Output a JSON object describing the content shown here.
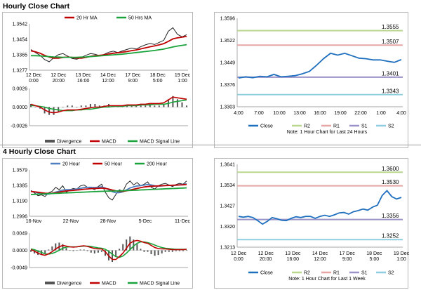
{
  "sections": [
    {
      "title": "Hourly Close Chart"
    },
    {
      "title": "4 Hourly Close Chart"
    }
  ],
  "colors": {
    "ma_fast": "#c00000",
    "ma_mid": "#c00000",
    "ma_slow": "#1aa33a",
    "ma_20h": "#4e7fbf",
    "price": "#222222",
    "macd": "#c00000",
    "signal": "#1aa33a",
    "divergence": "#555555",
    "close": "#1f6fbf",
    "r2": "#b9d78f",
    "r1": "#e6a5a5",
    "s1": "#9a93c8",
    "s2": "#8fcde0"
  },
  "chart_data": [
    {
      "id": "hourly_price",
      "type": "line",
      "title": "Hourly Close Chart",
      "legend": [
        "20 Hr MA",
        "50 Hrs MA"
      ],
      "y_ticks": [
        "1.3542",
        "1.3454",
        "1.3365",
        "1.3277"
      ],
      "ylim": [
        1.3277,
        1.3542
      ],
      "x_ticks": [
        [
          "12 Dec",
          "0:00"
        ],
        [
          "12 Dec",
          "20:00"
        ],
        [
          "13 Dec",
          "16:00"
        ],
        [
          "14 Dec",
          "12:00"
        ],
        [
          "17 Dec",
          "9:00"
        ],
        [
          "18 Dec",
          "5:00"
        ],
        [
          "19 Dec",
          "1:00"
        ]
      ],
      "series": [
        {
          "name": "Price",
          "values": [
            1.3395,
            1.3378,
            1.3362,
            1.3338,
            1.3325,
            1.3348,
            1.3366,
            1.3372,
            1.3358,
            1.3344,
            1.334,
            1.335,
            1.3362,
            1.3372,
            1.3368,
            1.336,
            1.3368,
            1.338,
            1.3386,
            1.3378,
            1.3388,
            1.3396,
            1.3404,
            1.3398,
            1.3412,
            1.3422,
            1.343,
            1.3424,
            1.3436,
            1.3448,
            1.35,
            1.352,
            1.3482,
            1.3468,
            1.348
          ]
        },
        {
          "name": "20 Hr MA",
          "values": [
            1.3388,
            1.3382,
            1.3374,
            1.3362,
            1.3352,
            1.3346,
            1.3346,
            1.335,
            1.3352,
            1.335,
            1.3347,
            1.3346,
            1.335,
            1.3356,
            1.336,
            1.3362,
            1.3365,
            1.337,
            1.3374,
            1.3377,
            1.338,
            1.3384,
            1.3389,
            1.3393,
            1.3399,
            1.3405,
            1.3411,
            1.3416,
            1.3422,
            1.3429,
            1.3442,
            1.3456,
            1.3462,
            1.3466,
            1.347
          ]
        },
        {
          "name": "50 Hrs MA",
          "values": [
            1.336,
            1.336,
            1.3359,
            1.3357,
            1.3355,
            1.3353,
            1.3352,
            1.3351,
            1.3351,
            1.3351,
            1.3351,
            1.3352,
            1.3353,
            1.3355,
            1.3357,
            1.3359,
            1.3361,
            1.3363,
            1.3365,
            1.3367,
            1.3369,
            1.3372,
            1.3375,
            1.3378,
            1.3381,
            1.3384,
            1.3387,
            1.339,
            1.3394,
            1.3398,
            1.3404,
            1.341,
            1.3415,
            1.3419,
            1.3423
          ]
        }
      ]
    },
    {
      "id": "hourly_macd",
      "type": "line",
      "legend": [
        "Divergence",
        "MACD",
        "MACD Signal Line"
      ],
      "y_ticks": [
        "0.0026",
        "0.0000",
        "-0.0026"
      ],
      "ylim": [
        -0.0026,
        0.0026
      ],
      "series": [
        {
          "name": "MACD",
          "values": [
            0.0004,
            0.0002,
            0.0,
            -0.0004,
            -0.0007,
            -0.0008,
            -0.0007,
            -0.0005,
            -0.0004,
            -0.0004,
            -0.0004,
            -0.0003,
            -0.0002,
            -0.0001,
            0.0,
            0.0,
            0.0001,
            0.0002,
            0.0002,
            0.0002,
            0.0002,
            0.0003,
            0.0003,
            0.0003,
            0.0004,
            0.0004,
            0.0005,
            0.0005,
            0.0005,
            0.0006,
            0.001,
            0.0014,
            0.0013,
            0.0012,
            0.0011
          ]
        },
        {
          "name": "MACD Signal Line",
          "values": [
            0.0002,
            0.0002,
            0.0001,
            0.0,
            -0.0002,
            -0.0003,
            -0.0004,
            -0.0005,
            -0.0005,
            -0.0005,
            -0.0004,
            -0.0004,
            -0.0003,
            -0.0003,
            -0.0002,
            -0.0001,
            0.0,
            0.0,
            0.0001,
            0.0001,
            0.0001,
            0.0002,
            0.0002,
            0.0002,
            0.0003,
            0.0003,
            0.0003,
            0.0004,
            0.0004,
            0.0004,
            0.0005,
            0.0007,
            0.0008,
            0.0009,
            0.001
          ]
        }
      ]
    },
    {
      "id": "last24",
      "type": "line",
      "y_ticks": [
        "1.3596",
        "1.3522",
        "1.3449",
        "1.3376",
        "1.3303"
      ],
      "ylim": [
        1.3303,
        1.3596
      ],
      "x_ticks": [
        "4:00",
        "7:00",
        "10:00",
        "13:00",
        "16:00",
        "19:00",
        "22:00",
        "1:00",
        "4:00"
      ],
      "levels": [
        {
          "name": "R2",
          "value": 1.3555,
          "label": "1.3555"
        },
        {
          "name": "R1",
          "value": 1.3507,
          "label": "1.3507"
        },
        {
          "name": "S1",
          "value": 1.3401,
          "label": "1.3401"
        },
        {
          "name": "S2",
          "value": 1.3343,
          "label": "1.3343"
        }
      ],
      "series": [
        {
          "name": "Close",
          "values": [
            1.3398,
            1.3402,
            1.3399,
            1.3404,
            1.3402,
            1.341,
            1.3402,
            1.3404,
            1.3406,
            1.3412,
            1.342,
            1.344,
            1.3462,
            1.348,
            1.3474,
            1.348,
            1.3472,
            1.3464,
            1.3462,
            1.3458,
            1.3458,
            1.3454,
            1.345,
            1.3459
          ]
        }
      ],
      "legend": [
        "Close",
        "R2",
        "R1",
        "S1",
        "S2"
      ],
      "note": "Note: 1 Hour Chart for Last 24 Hours"
    },
    {
      "id": "four_hourly_price",
      "type": "line",
      "title": "4 Hourly Close Chart",
      "legend": [
        "20 Hour",
        "50 Hour",
        "200 Hour"
      ],
      "y_ticks": [
        "1.3579",
        "1.3385",
        "1.3190",
        "1.2996"
      ],
      "ylim": [
        1.2996,
        1.3579
      ],
      "x_ticks": [
        "16-Nov",
        "22-Nov",
        "28-Nov",
        "5-Dec",
        "11-Dec"
      ],
      "series": [
        {
          "name": "Price",
          "values": [
            1.3322,
            1.329,
            1.3255,
            1.3265,
            1.3245,
            1.329,
            1.331,
            1.336,
            1.333,
            1.338,
            1.33,
            1.333,
            1.3346,
            1.334,
            1.3378,
            1.339,
            1.336,
            1.335,
            1.333,
            1.337,
            1.34,
            1.33,
            1.323,
            1.32,
            1.327,
            1.333,
            1.331,
            1.34,
            1.344,
            1.339,
            1.342,
            1.338,
            1.34,
            1.343,
            1.336,
            1.334,
            1.338,
            1.34,
            1.341,
            1.339,
            1.337,
            1.3395,
            1.341,
            1.34,
            1.344
          ]
        },
        {
          "name": "20 Hour",
          "values": [
            1.3312,
            1.3302,
            1.329,
            1.328,
            1.3272,
            1.3276,
            1.3284,
            1.33,
            1.3312,
            1.3326,
            1.333,
            1.3332,
            1.3334,
            1.334,
            1.3348,
            1.3356,
            1.336,
            1.336,
            1.3358,
            1.336,
            1.3365,
            1.3352,
            1.333,
            1.3304,
            1.3292,
            1.3294,
            1.3304,
            1.3328,
            1.3352,
            1.3366,
            1.3378,
            1.3382,
            1.3388,
            1.3396,
            1.339,
            1.338,
            1.3376,
            1.3378,
            1.3384,
            1.3386,
            1.3384,
            1.3386,
            1.3392,
            1.3396,
            1.3404
          ]
        },
        {
          "name": "50 Hour",
          "values": [
            1.3308,
            1.3304,
            1.3298,
            1.3292,
            1.3286,
            1.3284,
            1.3286,
            1.3292,
            1.33,
            1.3308,
            1.3314,
            1.3318,
            1.3322,
            1.3326,
            1.333,
            1.3336,
            1.334,
            1.3344,
            1.3346,
            1.3348,
            1.335,
            1.3346,
            1.3338,
            1.3326,
            1.3316,
            1.331,
            1.331,
            1.3316,
            1.3326,
            1.3336,
            1.3346,
            1.3356,
            1.3364,
            1.337,
            1.3374,
            1.3376,
            1.3378,
            1.338,
            1.3382,
            1.3384,
            1.3386,
            1.3388,
            1.339,
            1.3392,
            1.3396
          ]
        },
        {
          "name": "200 Hour",
          "values": [
            1.327,
            1.3272,
            1.3274,
            1.3276,
            1.3278,
            1.328,
            1.3282,
            1.3284,
            1.3286,
            1.3288,
            1.329,
            1.3292,
            1.3294,
            1.3296,
            1.3298,
            1.33,
            1.3302,
            1.3304,
            1.3306,
            1.3308,
            1.331,
            1.3311,
            1.3312,
            1.3313,
            1.3314,
            1.3315,
            1.3317,
            1.3319,
            1.3321,
            1.3323,
            1.3325,
            1.3327,
            1.3329,
            1.3331,
            1.3333,
            1.3335,
            1.3337,
            1.3339,
            1.3341,
            1.3343,
            1.3345,
            1.3347,
            1.3349,
            1.3351,
            1.3354
          ]
        }
      ]
    },
    {
      "id": "four_hourly_macd",
      "type": "line",
      "legend": [
        "Divergence",
        "MACD",
        "MACD Signal Line"
      ],
      "y_ticks": [
        "0.0049",
        "0.0000",
        "-0.0049"
      ],
      "ylim": [
        -0.0049,
        0.0049
      ],
      "series": [
        {
          "name": "MACD",
          "values": [
            0.0002,
            -0.0002,
            -0.0008,
            -0.0012,
            -0.0014,
            -0.001,
            -0.0004,
            0.0004,
            0.001,
            0.0014,
            0.0012,
            0.001,
            0.0009,
            0.001,
            0.0012,
            0.0013,
            0.0011,
            0.0008,
            0.0005,
            0.0004,
            0.0004,
            -0.0004,
            -0.0016,
            -0.0026,
            -0.0026,
            -0.0018,
            -0.0008,
            0.0006,
            0.002,
            0.0026,
            0.0028,
            0.0026,
            0.0022,
            0.002,
            0.0014,
            0.0008,
            0.0005,
            0.0004,
            0.0004,
            0.0003,
            0.0002,
            0.0002,
            0.0002,
            0.0002,
            0.0003
          ]
        },
        {
          "name": "MACD Signal Line",
          "values": [
            0.0004,
            0.0002,
            -0.0002,
            -0.0006,
            -0.001,
            -0.0011,
            -0.0009,
            -0.0005,
            0.0,
            0.0006,
            0.0009,
            0.001,
            0.001,
            0.001,
            0.0011,
            0.0012,
            0.0012,
            0.0011,
            0.0009,
            0.0007,
            0.0006,
            0.0003,
            -0.0003,
            -0.0011,
            -0.0018,
            -0.002,
            -0.0016,
            -0.0008,
            0.0002,
            0.0012,
            0.002,
            0.0024,
            0.0024,
            0.0022,
            0.0019,
            0.0015,
            0.0011,
            0.0008,
            0.0006,
            0.0005,
            0.0004,
            0.0003,
            0.0003,
            0.0003,
            0.0003
          ]
        }
      ]
    },
    {
      "id": "last_week",
      "type": "line",
      "y_ticks": [
        "1.3641",
        "1.3534",
        "1.3427",
        "1.3320",
        "1.3213"
      ],
      "ylim": [
        1.3213,
        1.3641
      ],
      "x_ticks": [
        [
          "12 Dec",
          "0:00"
        ],
        [
          "12 Dec",
          "20:00"
        ],
        [
          "13 Dec",
          "16:00"
        ],
        [
          "14 Dec",
          "12:00"
        ],
        [
          "17 Dec",
          "9:00"
        ],
        [
          "18 Dec",
          "5:00"
        ],
        [
          "19 Dec",
          "1:00"
        ]
      ],
      "levels": [
        {
          "name": "R2",
          "value": 1.36,
          "label": "1.3600"
        },
        {
          "name": "R1",
          "value": 1.353,
          "label": "1.3530"
        },
        {
          "name": "S1",
          "value": 1.3356,
          "label": "1.3356"
        },
        {
          "name": "S2",
          "value": 1.3252,
          "label": "1.3252"
        }
      ],
      "series": [
        {
          "name": "Close",
          "values": [
            1.3372,
            1.3368,
            1.3372,
            1.3366,
            1.335,
            1.3332,
            1.3346,
            1.3366,
            1.336,
            1.3352,
            1.335,
            1.3362,
            1.337,
            1.3366,
            1.3372,
            1.3372,
            1.3362,
            1.3372,
            1.3378,
            1.3372,
            1.338,
            1.339,
            1.3392,
            1.3384,
            1.3396,
            1.3402,
            1.341,
            1.3404,
            1.342,
            1.343,
            1.348,
            1.3505,
            1.3474,
            1.3462,
            1.347
          ]
        }
      ],
      "legend": [
        "Close",
        "R2",
        "R1",
        "S1",
        "S2"
      ],
      "note": "Note: 1 Hour Chart for Last 1 Week"
    }
  ]
}
